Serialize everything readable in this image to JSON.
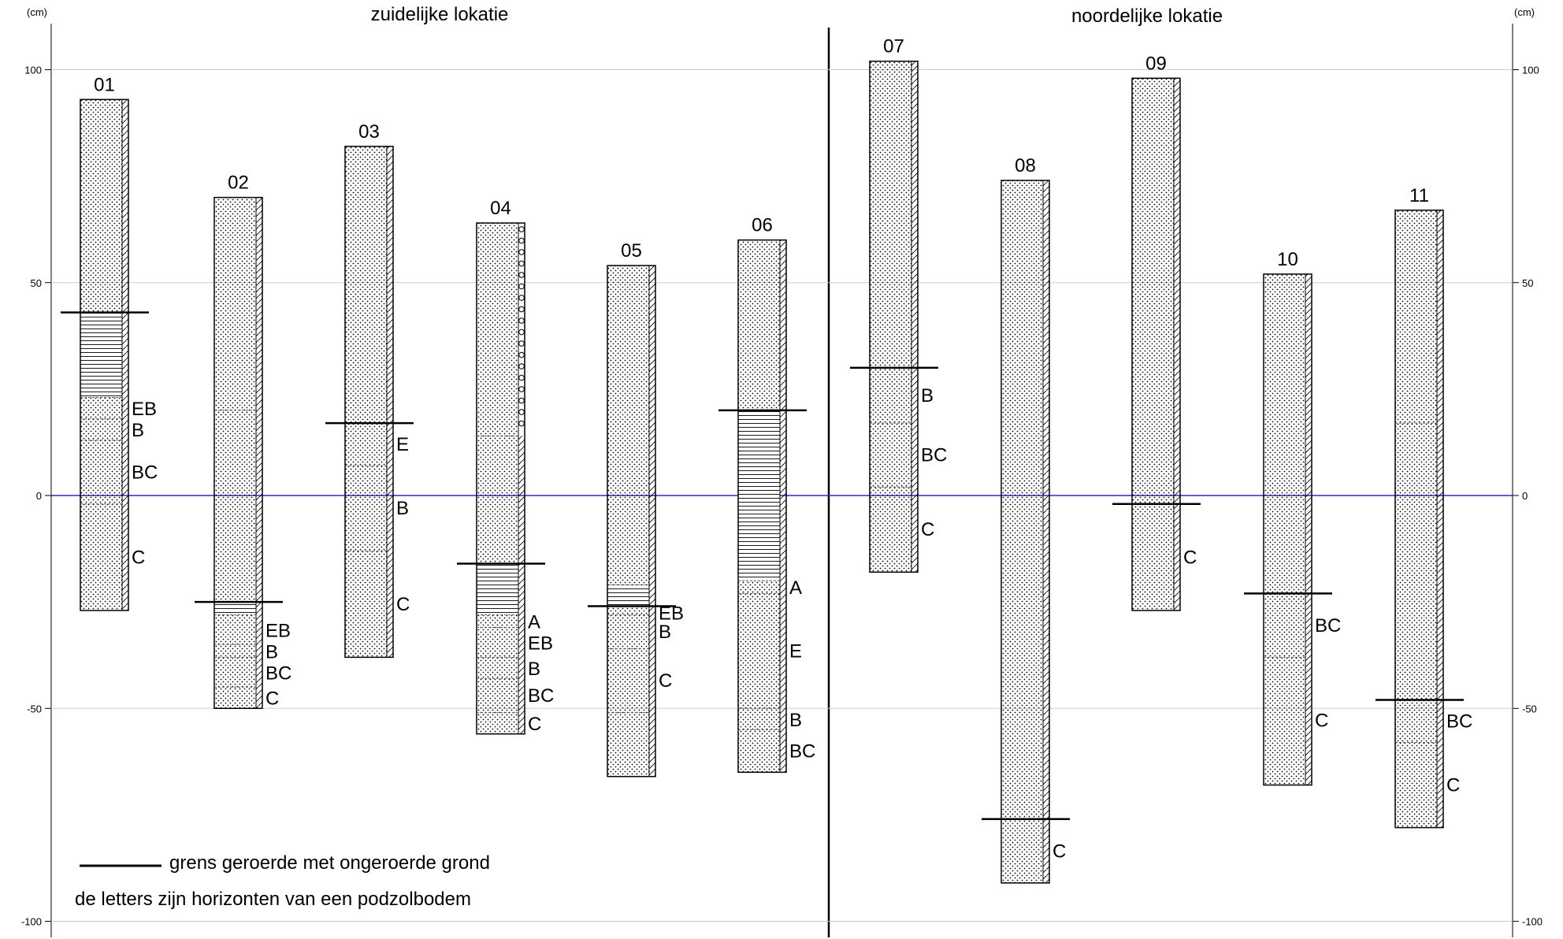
{
  "colors": {
    "grid": "#c8c8e6",
    "zero_line": "#2a2ad4",
    "ink": "#000000",
    "paper": "#ffffff"
  },
  "titles": {
    "south": "zuidelijke lokatie",
    "north": "noordelijke lokatie"
  },
  "axis": {
    "unit": "(cm)",
    "ylim": [
      -105,
      110
    ],
    "ticks": [
      {
        "value": 100,
        "label": "100"
      },
      {
        "value": 50,
        "label": "50"
      },
      {
        "value": 0,
        "label": "0"
      },
      {
        "value": -50,
        "label": "-50"
      },
      {
        "value": -100,
        "label": "-100"
      }
    ]
  },
  "legend": {
    "boundary_text": "grens geroerde met ongeroerde grond",
    "horizons_text": "de letters zijn horizonten van een podzolbodem"
  },
  "chart_data": {
    "type": "diagram",
    "ylabel": "(cm)",
    "ylim": [
      -105,
      110
    ],
    "cores": [
      {
        "id": "01",
        "top": 93,
        "bottom": -27,
        "side": "hatch",
        "hatched_fill": [
          23,
          43
        ],
        "disturbed_boundary": 43,
        "horizons": [
          {
            "label": "EB",
            "top": 23
          },
          {
            "label": "B",
            "top": 18
          },
          {
            "label": "BC",
            "top": 13
          },
          {
            "label": "C",
            "top": -2
          }
        ]
      },
      {
        "id": "02",
        "top": 70,
        "bottom": -50,
        "side": "hatch",
        "hatched_fill": [
          -28,
          -25
        ],
        "disturbed_boundary": -25,
        "horizons": [
          {
            "label": "",
            "top": 20
          },
          {
            "label": "EB",
            "top": -28
          },
          {
            "label": "B",
            "top": -35
          },
          {
            "label": "BC",
            "top": -38
          },
          {
            "label": "C",
            "top": -45
          }
        ]
      },
      {
        "id": "03",
        "top": 82,
        "bottom": -38,
        "side": "hatch",
        "hatched_fill": null,
        "disturbed_boundary": 17,
        "horizons": [
          {
            "label": "E",
            "top": 17
          },
          {
            "label": "B",
            "top": 7
          },
          {
            "label": "C",
            "top": -13
          }
        ]
      },
      {
        "id": "04",
        "top": 64,
        "bottom": -56,
        "side": "hatch",
        "gravel_side": [
          14,
          64
        ],
        "hatched_fill": [
          -28,
          -16
        ],
        "disturbed_boundary": -16,
        "horizons": [
          {
            "label": "",
            "top": 14
          },
          {
            "label": "A",
            "top": -28
          },
          {
            "label": "EB",
            "top": -31
          },
          {
            "label": "B",
            "top": -38
          },
          {
            "label": "BC",
            "top": -43
          },
          {
            "label": "C",
            "top": -51
          }
        ]
      },
      {
        "id": "05",
        "top": 54,
        "bottom": -66,
        "side": "hatch",
        "hatched_fill": [
          -26,
          -21
        ],
        "disturbed_boundary": -26,
        "horizons": [
          {
            "label": "EB",
            "top": -26
          },
          {
            "label": "B",
            "top": -28
          },
          {
            "label": "C",
            "top": -36
          },
          {
            "label": "",
            "top": -51
          }
        ]
      },
      {
        "id": "06",
        "top": 60,
        "bottom": -65,
        "side": "hatch",
        "hatched_fill": [
          -20,
          20
        ],
        "disturbed_boundary": 20,
        "horizons": [
          {
            "label": "A",
            "top": -20
          },
          {
            "label": "E",
            "top": -23
          },
          {
            "label": "B",
            "top": -50
          },
          {
            "label": "BC",
            "top": -55
          }
        ]
      },
      {
        "id": "07",
        "top": 102,
        "bottom": -18,
        "side": "hatch",
        "hatched_fill": null,
        "disturbed_boundary": 30,
        "horizons": [
          {
            "label": "B",
            "top": 30
          },
          {
            "label": "BC",
            "top": 17
          },
          {
            "label": "C",
            "top": 2
          }
        ]
      },
      {
        "id": "08",
        "top": 74,
        "bottom": -91,
        "side": "hatch",
        "hatched_fill": null,
        "disturbed_boundary": -76,
        "horizons": [
          {
            "label": "C",
            "top": -76
          }
        ]
      },
      {
        "id": "09",
        "top": 98,
        "bottom": -27,
        "side": "hatch",
        "hatched_fill": null,
        "disturbed_boundary": -2,
        "horizons": [
          {
            "label": "C",
            "top": -2
          }
        ]
      },
      {
        "id": "10",
        "top": 52,
        "bottom": -68,
        "side": "hatch",
        "hatched_fill": null,
        "disturbed_boundary": -23,
        "horizons": [
          {
            "label": "BC",
            "top": -23
          },
          {
            "label": "C",
            "top": -38
          }
        ]
      },
      {
        "id": "11",
        "top": 67,
        "bottom": -78,
        "side": "hatch",
        "hatched_fill": null,
        "disturbed_boundary": -48,
        "horizons": [
          {
            "label": "",
            "top": 17
          },
          {
            "label": "BC",
            "top": -48
          },
          {
            "label": "C",
            "top": -58
          }
        ]
      }
    ]
  }
}
